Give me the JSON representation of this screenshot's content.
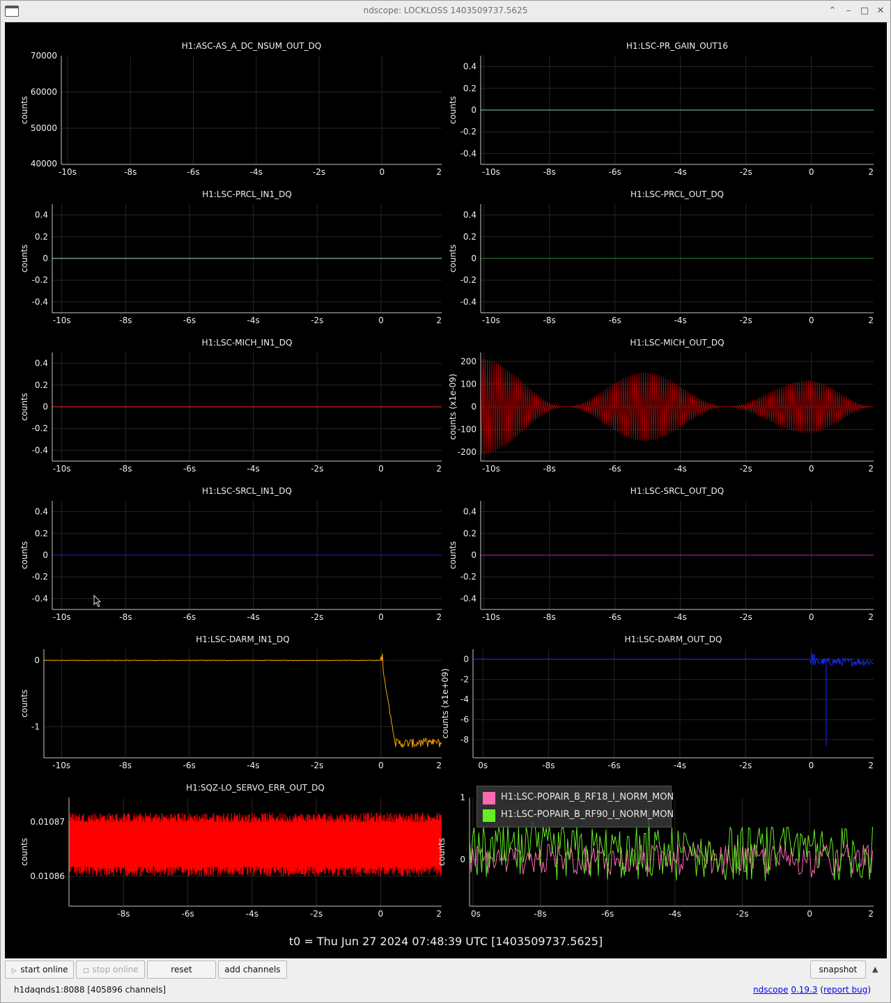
{
  "window": {
    "title": "ndscope: LOCKLOSS 1403509737.5625",
    "controls": [
      "chevron-up-icon",
      "minimize-icon",
      "maximize-icon",
      "close-icon"
    ]
  },
  "colors": {
    "background": "#000000",
    "grid": "#262626",
    "axis": "#c8c8c8",
    "text": "#f0f0f0"
  },
  "plots": [
    {
      "title": "H1:ASC-AS_A_DC_NSUM_OUT_DQ",
      "ylabel": "counts",
      "yticks": [
        "70000",
        "60000",
        "50000",
        "40000"
      ],
      "ytick_values": [
        70000,
        60000,
        50000,
        40000
      ],
      "ylim": [
        40000,
        70000
      ],
      "xticks": [
        "-10s",
        "-8s",
        "-6s",
        "-4s",
        "-2s",
        "0",
        "2"
      ],
      "xlim": [
        -10.2,
        1.9
      ],
      "series": []
    },
    {
      "title": "H1:LSC-PR_GAIN_OUT16",
      "ylabel": "counts",
      "yticks": [
        "0.4",
        "0.2",
        "0",
        "-0.2",
        "-0.4"
      ],
      "ytick_values": [
        0.4,
        0.2,
        0,
        -0.2,
        -0.4
      ],
      "ylim": [
        -0.5,
        0.5
      ],
      "xticks": [
        "-10s",
        "-8s",
        "-6s",
        "-4s",
        "-2s",
        "0",
        "2"
      ],
      "xlim": [
        -10.1,
        1.9
      ],
      "series": [
        {
          "kind": "flat",
          "value": 0,
          "color": "#7fd7a6"
        }
      ]
    },
    {
      "title": "H1:LSC-PRCL_IN1_DQ",
      "ylabel": "counts",
      "yticks": [
        "0.4",
        "0.2",
        "0",
        "-0.2",
        "-0.4"
      ],
      "ytick_values": [
        0.4,
        0.2,
        0,
        -0.2,
        -0.4
      ],
      "ylim": [
        -0.5,
        0.5
      ],
      "xticks": [
        "-10s",
        "-8s",
        "-6s",
        "-4s",
        "-2s",
        "0",
        "2"
      ],
      "xlim": [
        -10.3,
        1.9
      ],
      "series": [
        {
          "kind": "flat",
          "value": 0,
          "color": "#9fe8c0"
        }
      ]
    },
    {
      "title": "H1:LSC-PRCL_OUT_DQ",
      "ylabel": "counts",
      "yticks": [
        "0.4",
        "0.2",
        "0",
        "-0.2",
        "-0.4"
      ],
      "ytick_values": [
        0.4,
        0.2,
        0,
        -0.2,
        -0.4
      ],
      "ylim": [
        -0.5,
        0.5
      ],
      "xticks": [
        "-10s",
        "-8s",
        "-6s",
        "-4s",
        "-2s",
        "0",
        "2"
      ],
      "xlim": [
        -10.1,
        1.9
      ],
      "series": [
        {
          "kind": "flat",
          "value": 0,
          "color": "#2e8b3a"
        }
      ]
    },
    {
      "title": "H1:LSC-MICH_IN1_DQ",
      "ylabel": "counts",
      "yticks": [
        "0.4",
        "0.2",
        "0",
        "-0.2",
        "-0.4"
      ],
      "ytick_values": [
        0.4,
        0.2,
        0,
        -0.2,
        -0.4
      ],
      "ylim": [
        -0.5,
        0.5
      ],
      "xticks": [
        "-10s",
        "-8s",
        "-6s",
        "-4s",
        "-2s",
        "0",
        "2"
      ],
      "xlim": [
        -10.3,
        1.9
      ],
      "series": [
        {
          "kind": "flat",
          "value": 0,
          "color": "#ff2a2a"
        }
      ]
    },
    {
      "title": "H1:LSC-MICH_OUT_DQ",
      "ylabel": "counts (x1e-09)",
      "yticks": [
        "200",
        "100",
        "0",
        "-100",
        "-200"
      ],
      "ytick_values": [
        200,
        100,
        0,
        -100,
        -200
      ],
      "ylim": [
        -240,
        240
      ],
      "xticks": [
        "-10s",
        "-8s",
        "-6s",
        "-4s",
        "-2s",
        "0",
        "2"
      ],
      "xlim": [
        -10.1,
        1.9
      ],
      "series": [
        {
          "kind": "beat",
          "color": "#c40000",
          "amp_profile": [
            {
              "t": -10.1,
              "a": 210
            },
            {
              "t": -7.5,
              "a": 0
            },
            {
              "t": -5.1,
              "a": 150
            },
            {
              "t": -2.6,
              "a": 0
            },
            {
              "t": -0.1,
              "a": 115
            },
            {
              "t": 1.9,
              "a": 0
            }
          ]
        }
      ]
    },
    {
      "title": "H1:LSC-SRCL_IN1_DQ",
      "ylabel": "counts",
      "yticks": [
        "0.4",
        "0.2",
        "0",
        "-0.2",
        "-0.4"
      ],
      "ytick_values": [
        0.4,
        0.2,
        0,
        -0.2,
        -0.4
      ],
      "ylim": [
        -0.5,
        0.5
      ],
      "xticks": [
        "-10s",
        "-8s",
        "-6s",
        "-4s",
        "-2s",
        "0",
        "2"
      ],
      "xlim": [
        -10.3,
        1.9
      ],
      "series": [
        {
          "kind": "flat",
          "value": 0,
          "color": "#2020ee"
        }
      ]
    },
    {
      "title": "H1:LSC-SRCL_OUT_DQ",
      "ylabel": "counts",
      "yticks": [
        "0.4",
        "0.2",
        "0",
        "-0.2",
        "-0.4"
      ],
      "ytick_values": [
        0.4,
        0.2,
        0,
        -0.2,
        -0.4
      ],
      "ylim": [
        -0.5,
        0.5
      ],
      "xticks": [
        "-10s",
        "-8s",
        "-6s",
        "-4s",
        "-2s",
        "0",
        "2"
      ],
      "xlim": [
        -10.1,
        1.9
      ],
      "series": [
        {
          "kind": "flat",
          "value": 0,
          "color": "#c020c0"
        }
      ]
    },
    {
      "title": "H1:LSC-DARM_IN1_DQ",
      "ylabel": "counts",
      "yticks": [
        "0",
        "-1"
      ],
      "ytick_values": [
        0,
        -1
      ],
      "ylim": [
        -1.47,
        0.17
      ],
      "xticks": [
        "-10s",
        "-8s",
        "-6s",
        "-4s",
        "-2s",
        "0",
        "2"
      ],
      "xlim": [
        -10.55,
        1.9
      ],
      "series": [
        {
          "kind": "darm_in",
          "color": "#ffa500",
          "drop_at": 0.0,
          "final": -1.25
        }
      ]
    },
    {
      "title": "H1:LSC-DARM_OUT_DQ",
      "ylabel": "counts (x1e+09)",
      "yticks": [
        "0",
        "-2",
        "-4",
        "-6",
        "-8"
      ],
      "ytick_values": [
        0,
        -2,
        -4,
        -6,
        -8
      ],
      "ylim": [
        -9.8,
        1.0
      ],
      "xticks": [
        "0s",
        "-8s",
        "-6s",
        "-4s",
        "-2s",
        "0",
        "2"
      ],
      "xlim": [
        -10.3,
        1.9
      ],
      "series": [
        {
          "kind": "darm_out",
          "color": "#1a2cff",
          "glitch_at": 0.45,
          "glitch_min": -8.6
        }
      ]
    },
    {
      "title": "H1:SQZ-LO_SERVO_ERR_OUT_DQ",
      "ylabel": "counts",
      "yticks": [
        "0.01087",
        "0.01086"
      ],
      "ytick_values": [
        0.01087,
        0.01086
      ],
      "ylim": [
        0.0108545,
        0.0108745
      ],
      "xticks": [
        "-8s",
        "-6s",
        "-4s",
        "-2s",
        "0",
        "2"
      ],
      "xlim": [
        -9.7,
        1.9
      ],
      "series": [
        {
          "kind": "band",
          "color": "#ff0000",
          "center": 0.010866,
          "half_width": 5.2e-06
        }
      ]
    },
    {
      "title": "",
      "ylabel": "counts",
      "yticks": [
        "1",
        "0"
      ],
      "ytick_values": [
        1,
        0
      ],
      "ylim": [
        -0.75,
        1.0
      ],
      "xticks": [
        "0s",
        "-8s",
        "-6s",
        "-4s",
        "-2s",
        "0",
        "2"
      ],
      "xlim": [
        -10.1,
        1.9
      ],
      "series": [
        {
          "kind": "noise",
          "name": "H1:LSC-POPAIR_B_RF18_I_NORM_MON",
          "color": "#ff69b4",
          "mean": 0.0,
          "amp": 0.25
        },
        {
          "kind": "noise",
          "name": "H1:LSC-POPAIR_B_RF90_I_NORM_MON",
          "color": "#66ee22",
          "mean": 0.1,
          "amp": 0.45
        }
      ]
    }
  ],
  "t0_label": "t0 = Thu Jun 27 2024 07:48:39 UTC [1403509737.5625]",
  "toolbar": {
    "start_online": "start online",
    "stop_online": "stop online",
    "reset": "reset",
    "add_channels": "add channels",
    "snapshot": "snapshot"
  },
  "status": {
    "server": "h1daqnds1:8088  [405896 channels]",
    "app_name": "ndscope",
    "version": "0.19.3",
    "report_bug": "report bug"
  }
}
